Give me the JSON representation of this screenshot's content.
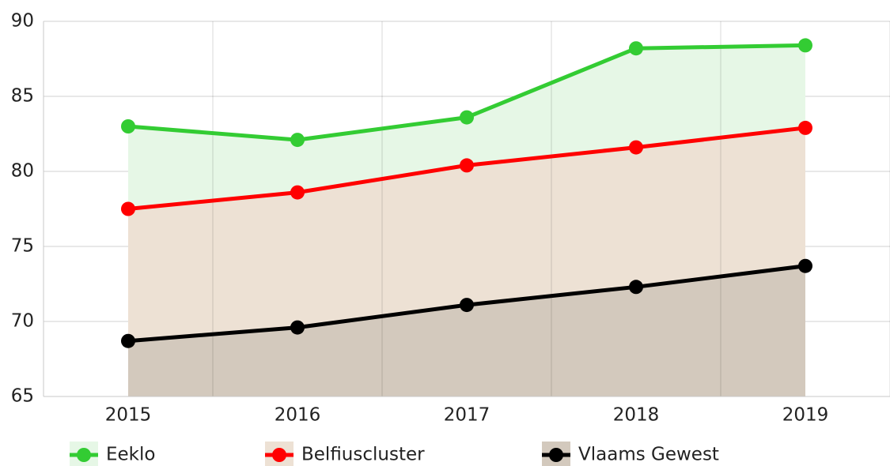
{
  "chart_data": {
    "type": "line",
    "categories": [
      "2015",
      "2016",
      "2017",
      "2018",
      "2019"
    ],
    "series": [
      {
        "name": "Eeklo",
        "color": "#33cc33",
        "fill": "#e6f7e6",
        "values": [
          83.0,
          82.1,
          83.6,
          88.2,
          88.4
        ]
      },
      {
        "name": "Belfiuscluster",
        "color": "#ff0000",
        "fill": "#ede1d4",
        "values": [
          77.5,
          78.6,
          80.4,
          81.6,
          82.9
        ]
      },
      {
        "name": "Vlaams Gewest",
        "color": "#000000",
        "fill": "#d3c9bd",
        "values": [
          68.7,
          69.6,
          71.1,
          72.3,
          73.7
        ]
      }
    ],
    "ylim": [
      65,
      90
    ],
    "yticks": [
      65,
      70,
      75,
      80,
      85,
      90
    ],
    "grid": true,
    "legend": "bottom",
    "area": true
  }
}
